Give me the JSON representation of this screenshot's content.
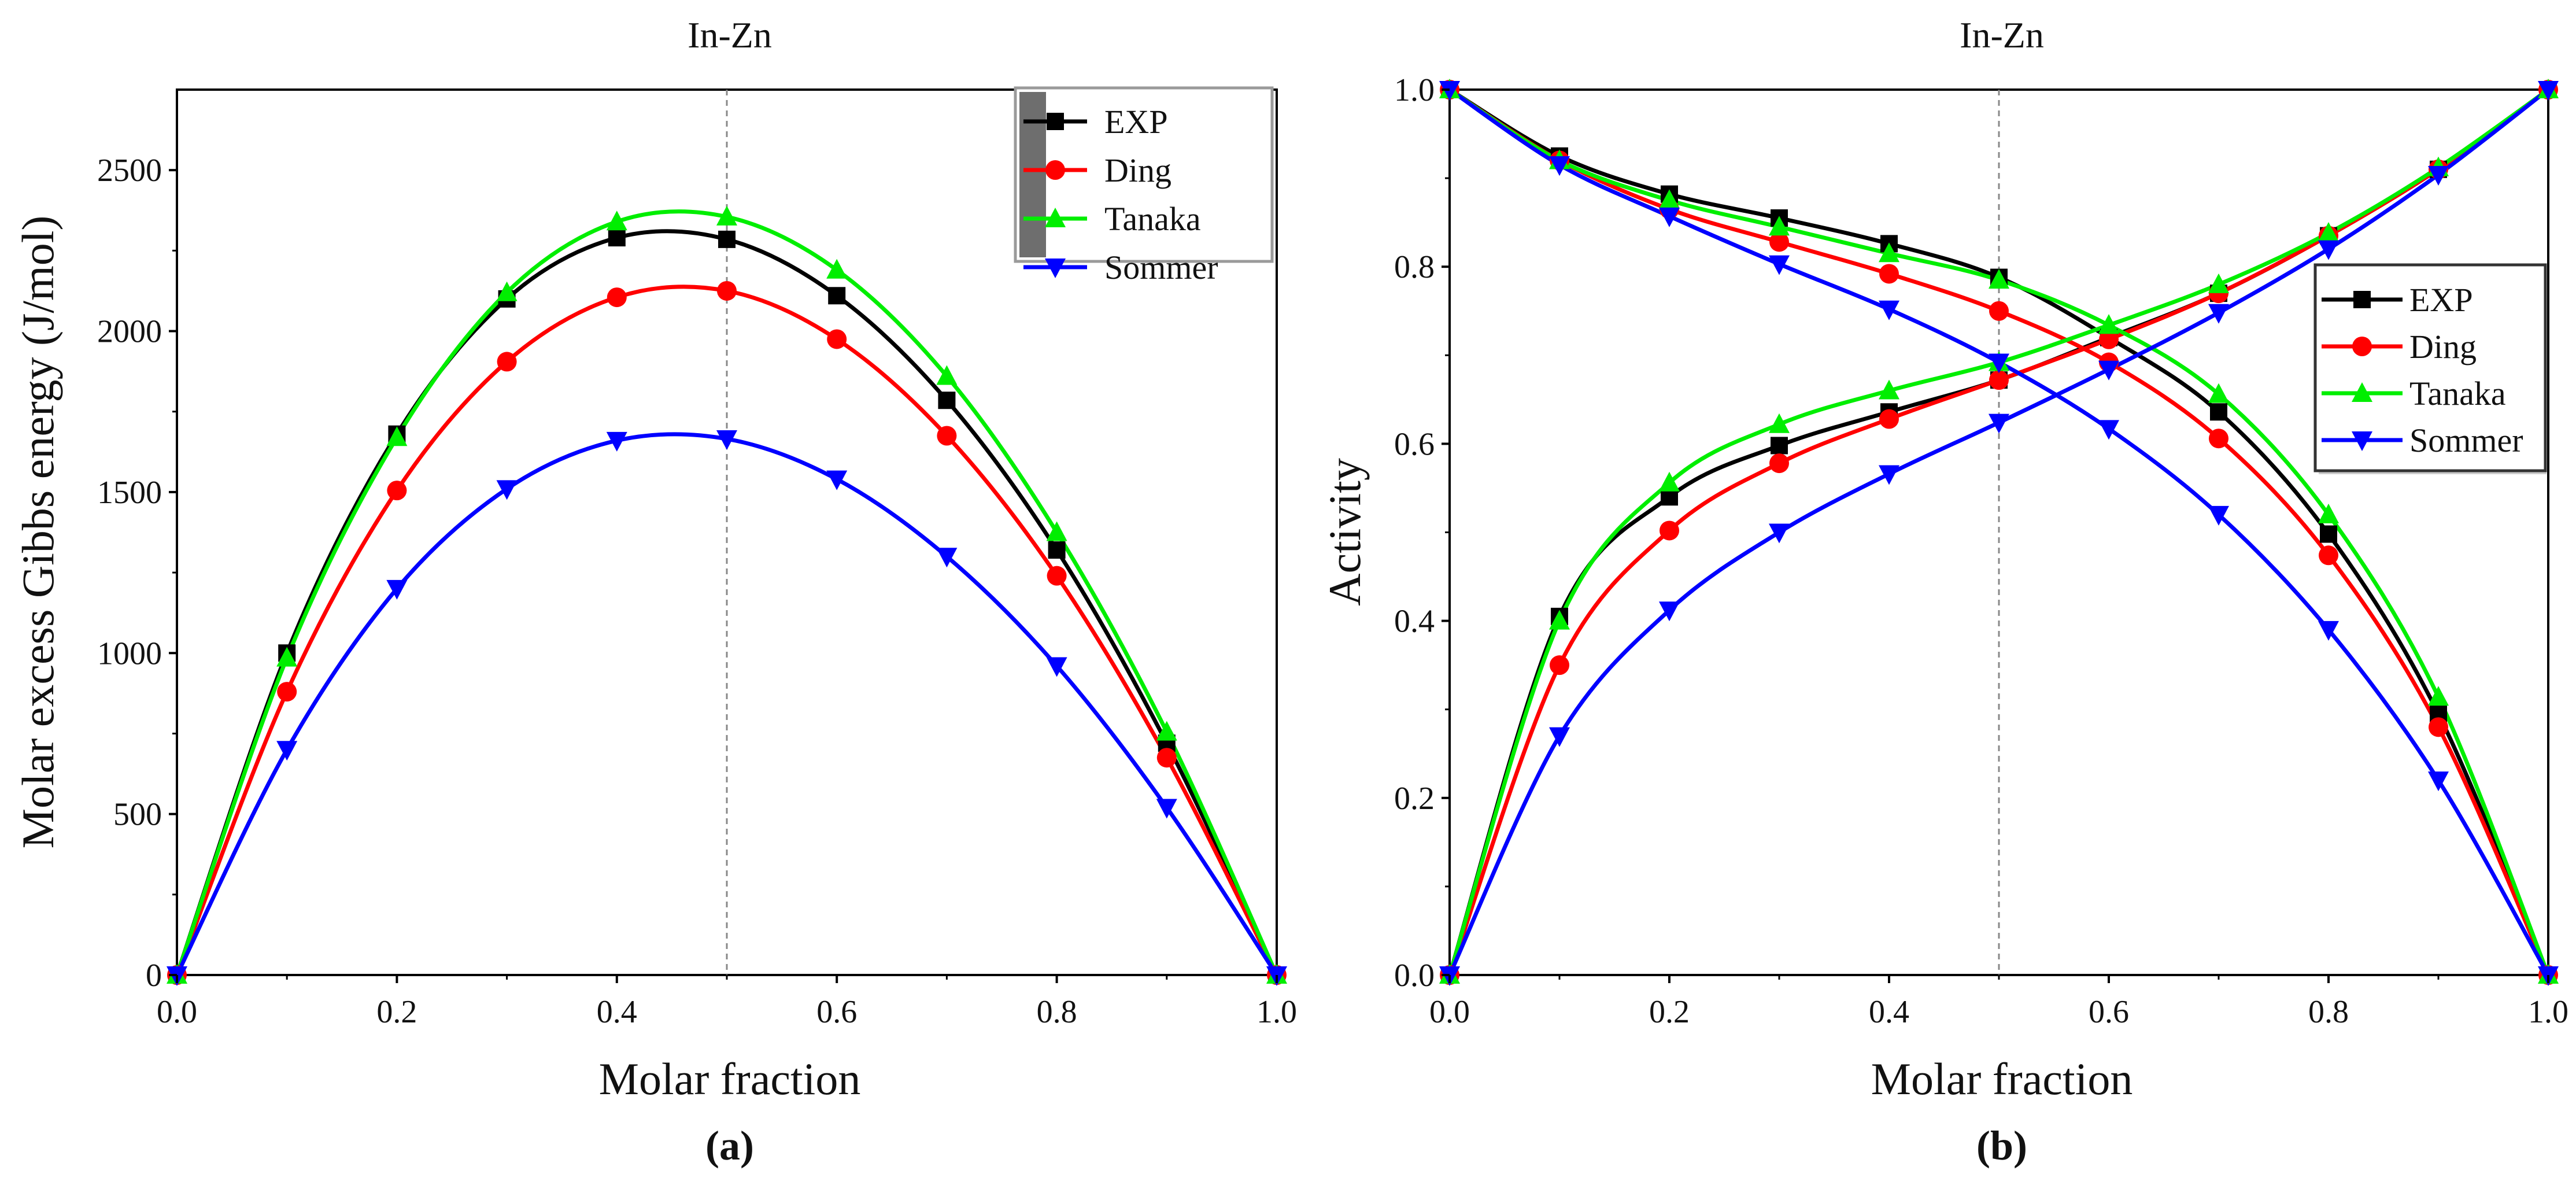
{
  "chart_data": [
    {
      "type": "line",
      "panel_label": "(a)",
      "title": "In-Zn",
      "xlabel": "Molar fraction",
      "ylabel": "Molar excess Gibbs energy (J/mol)",
      "xlim": [
        0,
        1
      ],
      "ylim": [
        0,
        2750
      ],
      "x_ticks": [
        "0.0",
        "0.2",
        "0.4",
        "0.6",
        "0.8",
        "1.0"
      ],
      "y_ticks": [
        "0",
        "500",
        "1000",
        "1500",
        "2000",
        "2500"
      ],
      "reference_line_x": 0.5,
      "legend_position": "top-right",
      "x": [
        0,
        0.1,
        0.2,
        0.3,
        0.4,
        0.5,
        0.6,
        0.7,
        0.8,
        0.9,
        1.0
      ],
      "series": [
        {
          "name": "EXP",
          "color": "#000000",
          "marker": "square",
          "values": [
            0,
            1000,
            1680,
            2100,
            2290,
            2285,
            2110,
            1785,
            1320,
            720,
            0
          ]
        },
        {
          "name": "Ding",
          "color": "#ff0000",
          "marker": "circle",
          "values": [
            0,
            880,
            1505,
            1905,
            2105,
            2125,
            1975,
            1675,
            1240,
            675,
            0
          ]
        },
        {
          "name": "Tanaka",
          "color": "#00ee00",
          "marker": "triangle-up",
          "values": [
            0,
            985,
            1670,
            2120,
            2340,
            2355,
            2190,
            1860,
            1375,
            755,
            0
          ]
        },
        {
          "name": "Sommer",
          "color": "#0000ff",
          "marker": "triangle-down",
          "values": [
            0,
            700,
            1200,
            1510,
            1660,
            1665,
            1540,
            1300,
            960,
            520,
            0
          ]
        }
      ]
    },
    {
      "type": "line",
      "panel_label": "(b)",
      "title": "In-Zn",
      "xlabel": "Molar fraction",
      "ylabel": "Activity",
      "xlim": [
        0,
        1
      ],
      "ylim": [
        0,
        1
      ],
      "x_ticks": [
        "0.0",
        "0.2",
        "0.4",
        "0.6",
        "0.8",
        "1.0"
      ],
      "y_ticks": [
        "0.0",
        "0.2",
        "0.4",
        "0.6",
        "0.8",
        "1.0"
      ],
      "reference_line_x": 0.5,
      "legend_position": "center-right",
      "x": [
        0,
        0.1,
        0.2,
        0.3,
        0.4,
        0.5,
        0.6,
        0.7,
        0.8,
        0.9,
        1.0
      ],
      "series": [
        {
          "name": "EXP",
          "color": "#000000",
          "marker": "square",
          "rising": [
            0,
            0.405,
            0.54,
            0.598,
            0.636,
            0.672,
            0.72,
            0.77,
            0.835,
            0.91,
            1.0
          ],
          "falling": [
            1.0,
            0.925,
            0.882,
            0.855,
            0.826,
            0.788,
            0.72,
            0.636,
            0.498,
            0.295,
            0
          ]
        },
        {
          "name": "Ding",
          "color": "#ff0000",
          "marker": "circle",
          "rising": [
            0,
            0.35,
            0.502,
            0.578,
            0.628,
            0.672,
            0.718,
            0.77,
            0.835,
            0.91,
            1.0
          ],
          "falling": [
            1.0,
            0.92,
            0.865,
            0.828,
            0.792,
            0.75,
            0.692,
            0.606,
            0.474,
            0.28,
            0
          ]
        },
        {
          "name": "Tanaka",
          "color": "#00ee00",
          "marker": "triangle-up",
          "rising": [
            0,
            0.4,
            0.556,
            0.622,
            0.66,
            0.692,
            0.734,
            0.78,
            0.838,
            0.912,
            1.0
          ],
          "falling": [
            1.0,
            0.92,
            0.875,
            0.845,
            0.815,
            0.785,
            0.734,
            0.656,
            0.52,
            0.314,
            0
          ]
        },
        {
          "name": "Sommer",
          "color": "#0000ff",
          "marker": "triangle-down",
          "rising": [
            0,
            0.27,
            0.412,
            0.5,
            0.566,
            0.624,
            0.684,
            0.748,
            0.82,
            0.904,
            1.0
          ],
          "falling": [
            1.0,
            0.915,
            0.857,
            0.803,
            0.752,
            0.692,
            0.617,
            0.52,
            0.39,
            0.22,
            0
          ]
        }
      ]
    }
  ]
}
